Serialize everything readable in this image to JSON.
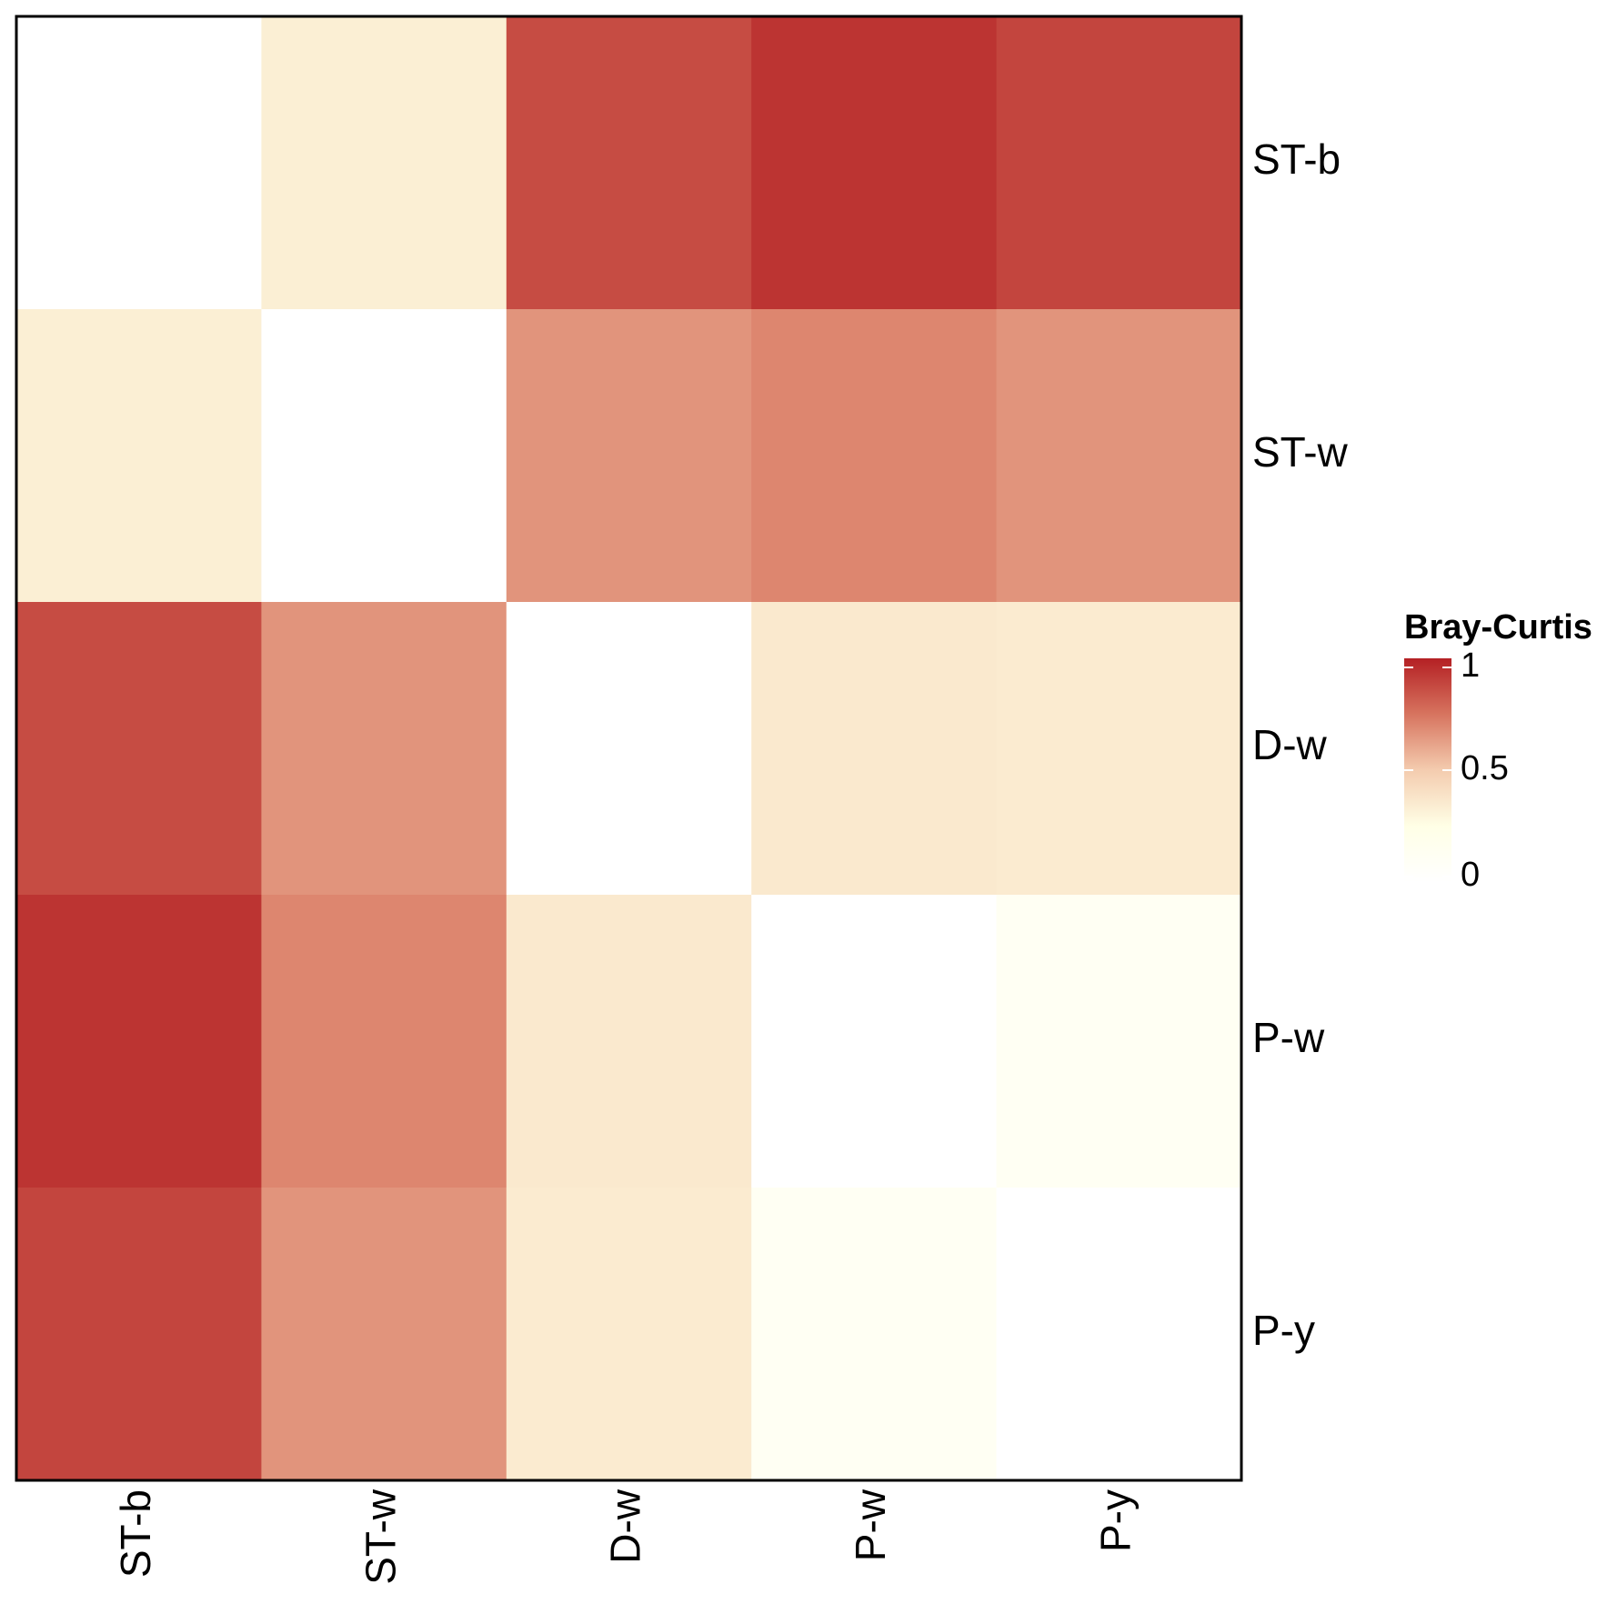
{
  "chart_data": {
    "type": "heatmap",
    "title": "",
    "xlabel": "",
    "ylabel": "",
    "x_categories": [
      "ST-b",
      "ST-w",
      "D-w",
      "P-w",
      "P-y"
    ],
    "y_categories": [
      "ST-b",
      "ST-w",
      "D-w",
      "P-w",
      "P-y"
    ],
    "values": [
      [
        0.0,
        0.33,
        0.87,
        0.94,
        0.89
      ],
      [
        0.33,
        0.0,
        0.66,
        0.7,
        0.66
      ],
      [
        0.87,
        0.66,
        0.0,
        0.36,
        0.35
      ],
      [
        0.94,
        0.7,
        0.36,
        0.0,
        0.12
      ],
      [
        0.89,
        0.66,
        0.35,
        0.12,
        0.0
      ]
    ],
    "legend": {
      "title": "Bray-Curtis",
      "position": "right",
      "range": [
        0,
        1
      ],
      "ticks": [
        {
          "value": 1,
          "label": "1"
        },
        {
          "value": 0.5,
          "label": "0.5"
        },
        {
          "value": 0,
          "label": "0"
        }
      ],
      "colors": [
        "#ffffff",
        "#ffffe6",
        "#f4ccaf",
        "#d7745f",
        "#b42024"
      ]
    },
    "x_tick_position": "bottom",
    "y_tick_position": "right",
    "grid": false
  }
}
